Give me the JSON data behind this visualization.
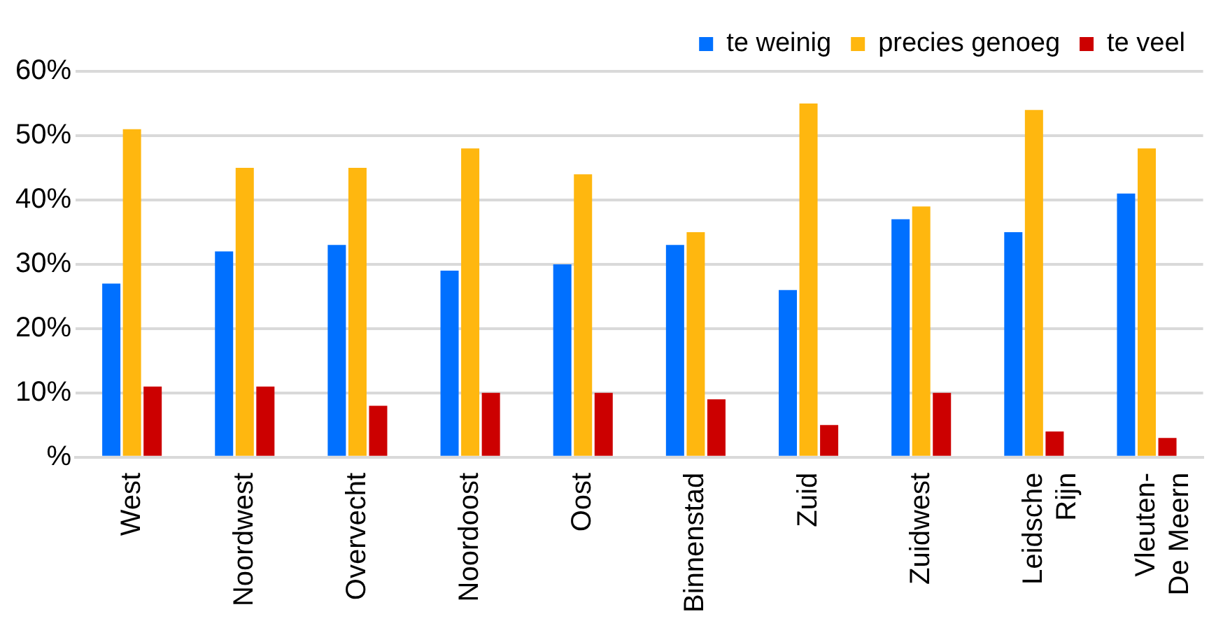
{
  "chart_data": {
    "type": "bar",
    "categories": [
      "West",
      "Noordwest",
      "Overvecht",
      "Noordoost",
      "Oost",
      "Binnenstad",
      "Zuid",
      "Zuidwest",
      "Leidsche\nRijn",
      "Vleuten-\nDe Meern"
    ],
    "series": [
      {
        "name": "te weinig",
        "color": "#0070ff",
        "values": [
          27,
          32,
          33,
          29,
          30,
          33,
          26,
          37,
          35,
          41
        ]
      },
      {
        "name": "precies genoeg",
        "color": "#ffb70f",
        "values": [
          51,
          45,
          45,
          48,
          44,
          35,
          55,
          39,
          54,
          48
        ]
      },
      {
        "name": "te veel",
        "color": "#cc0000",
        "values": [
          11,
          11,
          8,
          10,
          10,
          9,
          5,
          10,
          4,
          3
        ]
      }
    ],
    "ylim": [
      0,
      60
    ],
    "yticks": [
      {
        "value": 0,
        "label": "%"
      },
      {
        "value": 10,
        "label": "10%"
      },
      {
        "value": 20,
        "label": "20%"
      },
      {
        "value": 30,
        "label": "30%"
      },
      {
        "value": 40,
        "label": "40%"
      },
      {
        "value": 50,
        "label": "50%"
      },
      {
        "value": 60,
        "label": "60%"
      }
    ],
    "grid": "y",
    "legend": "top right"
  }
}
